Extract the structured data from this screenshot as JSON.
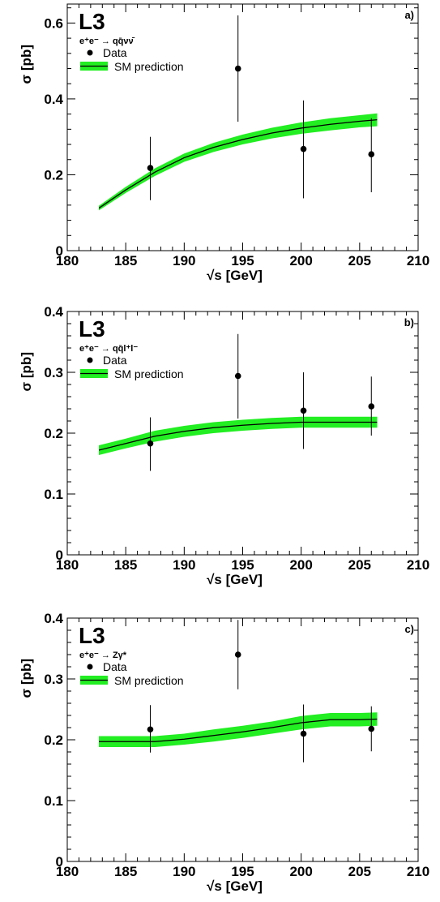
{
  "colors": {
    "band": "#22ee22",
    "line": "#000000",
    "point": "#000000",
    "axis": "#000000"
  },
  "chart_data": [
    {
      "type": "line",
      "panel_tag": "a)",
      "experiment": "L3",
      "process": "e⁺e⁻ → qq̄νν̄",
      "xlabel": "√s [GeV]",
      "ylabel": "σ [pb]",
      "xlim": [
        180,
        210
      ],
      "ylim": [
        0,
        0.65
      ],
      "xticks": [
        180,
        185,
        190,
        195,
        200,
        205,
        210
      ],
      "xtick_labels": [
        "180",
        "185",
        "190",
        "195",
        "200",
        "205",
        "210"
      ],
      "yticks": [
        0,
        0.2,
        0.4,
        0.6
      ],
      "ytick_labels": [
        "0",
        "0.2",
        "0.4",
        "0.6"
      ],
      "legend": {
        "placement": "top-left",
        "data_label": "Data",
        "prediction_label": "SM prediction"
      },
      "series": [
        {
          "name": "Data",
          "kind": "points",
          "x": [
            187.1,
            194.6,
            200.2,
            206.0
          ],
          "y": [
            0.218,
            0.48,
            0.268,
            0.254
          ],
          "err_low": [
            0.085,
            0.14,
            0.13,
            0.1
          ],
          "err_high": [
            0.082,
            0.14,
            0.128,
            0.095
          ]
        },
        {
          "name": "SM prediction",
          "kind": "band",
          "x": [
            182.7,
            185,
            187.5,
            190,
            192.5,
            195,
            197.5,
            200,
            202.5,
            205,
            206.5
          ],
          "y": [
            0.112,
            0.16,
            0.207,
            0.245,
            0.272,
            0.293,
            0.31,
            0.323,
            0.333,
            0.341,
            0.345
          ],
          "band_halfwidth": [
            0.006,
            0.008,
            0.01,
            0.011,
            0.012,
            0.013,
            0.014,
            0.015,
            0.016,
            0.016,
            0.017
          ]
        }
      ]
    },
    {
      "type": "line",
      "panel_tag": "b)",
      "experiment": "L3",
      "process": "e⁺e⁻ → qq̄l⁺l⁻",
      "xlabel": "√s [GeV]",
      "ylabel": "σ [pb]",
      "xlim": [
        180,
        210
      ],
      "ylim": [
        0,
        0.4
      ],
      "xticks": [
        180,
        185,
        190,
        195,
        200,
        205,
        210
      ],
      "xtick_labels": [
        "180",
        "185",
        "190",
        "195",
        "200",
        "205",
        "210"
      ],
      "yticks": [
        0,
        0.1,
        0.2,
        0.3,
        0.4
      ],
      "ytick_labels": [
        "0",
        "0.1",
        "0.2",
        "0.3",
        "0.4"
      ],
      "legend": {
        "placement": "top-left",
        "data_label": "Data",
        "prediction_label": "SM prediction"
      },
      "series": [
        {
          "name": "Data",
          "kind": "points",
          "x": [
            187.1,
            194.6,
            200.2,
            206.0
          ],
          "y": [
            0.183,
            0.294,
            0.237,
            0.244
          ],
          "err_low": [
            0.045,
            0.07,
            0.063,
            0.048
          ],
          "err_high": [
            0.043,
            0.069,
            0.063,
            0.049
          ]
        },
        {
          "name": "SM prediction",
          "kind": "band",
          "x": [
            182.7,
            185,
            187.5,
            190,
            192.5,
            195,
            197.5,
            200,
            202.5,
            205,
            206.5
          ],
          "y": [
            0.172,
            0.183,
            0.195,
            0.203,
            0.209,
            0.213,
            0.216,
            0.218,
            0.218,
            0.218,
            0.218
          ],
          "band_halfwidth": [
            0.008,
            0.008,
            0.009,
            0.009,
            0.009,
            0.009,
            0.009,
            0.009,
            0.009,
            0.009,
            0.009
          ]
        }
      ]
    },
    {
      "type": "line",
      "panel_tag": "c)",
      "experiment": "L3",
      "process": "e⁺e⁻ → Zγ*",
      "xlabel": "√s [GeV]",
      "ylabel": "σ [pb]",
      "xlim": [
        180,
        210
      ],
      "ylim": [
        0,
        0.4
      ],
      "xticks": [
        180,
        185,
        190,
        195,
        200,
        205,
        210
      ],
      "xtick_labels": [
        "180",
        "185",
        "190",
        "195",
        "200",
        "205",
        "210"
      ],
      "yticks": [
        0,
        0.1,
        0.2,
        0.3,
        0.4
      ],
      "ytick_labels": [
        "0",
        "0.1",
        "0.2",
        "0.3",
        "0.4"
      ],
      "legend": {
        "placement": "top-left",
        "data_label": "Data",
        "prediction_label": "SM prediction"
      },
      "series": [
        {
          "name": "Data",
          "kind": "points",
          "x": [
            187.1,
            194.6,
            200.2,
            206.0
          ],
          "y": [
            0.217,
            0.34,
            0.21,
            0.218
          ],
          "err_low": [
            0.038,
            0.057,
            0.047,
            0.037
          ],
          "err_high": [
            0.04,
            0.057,
            0.048,
            0.037
          ]
        },
        {
          "name": "SM prediction",
          "kind": "band",
          "x": [
            182.7,
            185,
            187.5,
            190,
            192.5,
            195,
            197.5,
            200,
            202.5,
            205,
            206.5
          ],
          "y": [
            0.197,
            0.197,
            0.197,
            0.201,
            0.207,
            0.213,
            0.22,
            0.228,
            0.233,
            0.233,
            0.234
          ],
          "band_halfwidth": [
            0.009,
            0.009,
            0.009,
            0.009,
            0.01,
            0.01,
            0.01,
            0.011,
            0.011,
            0.011,
            0.011
          ]
        }
      ]
    }
  ]
}
